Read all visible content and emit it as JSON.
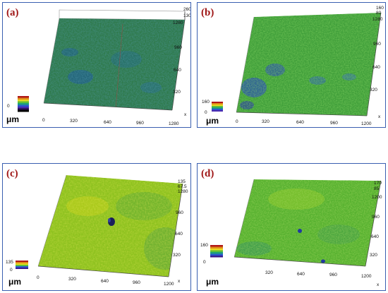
{
  "unit_label": "μm",
  "colors": {
    "frame": "#3a5fb0",
    "label": "#a01818"
  },
  "panels": [
    {
      "label": "(a)",
      "legend_ticks": [
        "0",
        "260"
      ],
      "z_ticks": [
        "260",
        "130"
      ],
      "y_ticks": [
        "1280",
        "960",
        "640",
        "320"
      ],
      "x_ticks": [
        "0",
        "320",
        "640",
        "960",
        "1280"
      ],
      "x_axis": "x",
      "z_axis": "z",
      "surface": {
        "base": "#2f7a4c",
        "hi": "#4f9e58",
        "lo": "#1f5e8e",
        "tint": "#3d8a50"
      }
    },
    {
      "label": "(b)",
      "legend_ticks": [
        "160",
        "0"
      ],
      "z_ticks": [
        "160",
        "80"
      ],
      "y_ticks": [
        "1280",
        "960",
        "640",
        "320"
      ],
      "x_ticks": [
        "0",
        "320",
        "640",
        "960",
        "1200"
      ],
      "x_axis": "x",
      "z_axis": "z",
      "surface": {
        "base": "#3f9e3a",
        "hi": "#7cc22e",
        "lo": "#2a4fb0",
        "tint": "#55ad36"
      }
    },
    {
      "label": "(c)",
      "legend_ticks": [
        "135",
        "0"
      ],
      "z_ticks": [
        "135",
        "67.5"
      ],
      "y_ticks": [
        "1280",
        "960",
        "640",
        "320"
      ],
      "x_ticks": [
        "0",
        "320",
        "640",
        "960",
        "1200"
      ],
      "x_axis": "x",
      "z_axis": "z",
      "surface": {
        "base": "#8ec21f",
        "hi": "#c7d21a",
        "lo": "#2a8b4a",
        "tint": "#9cc820"
      }
    },
    {
      "label": "(d)",
      "legend_ticks": [
        "160",
        "0"
      ],
      "z_ticks": [
        "170",
        "85"
      ],
      "y_ticks": [
        "1200",
        "960",
        "640",
        "320"
      ],
      "x_ticks": [
        "320",
        "640",
        "960",
        "1200"
      ],
      "x_axis": "x",
      "z_axis": "z",
      "surface": {
        "base": "#54b02e",
        "hi": "#96cc22",
        "lo": "#2b8f5a",
        "tint": "#62b62a"
      }
    }
  ]
}
